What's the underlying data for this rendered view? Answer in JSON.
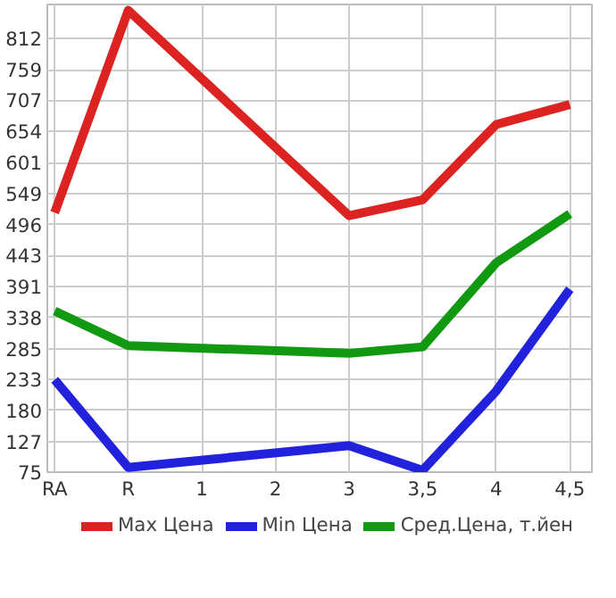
{
  "chart_data": {
    "type": "line",
    "categories": [
      "RA",
      "R",
      "1",
      "2",
      "3",
      "3,5",
      "4",
      "4,5"
    ],
    "series": [
      {
        "name": "Max Цена",
        "color": "#dd2222",
        "values": [
          516,
          860,
          null,
          null,
          511,
          538,
          666,
          700
        ]
      },
      {
        "name": "Min Цена",
        "color": "#2222dd",
        "values": [
          232,
          83,
          null,
          null,
          120,
          78,
          213,
          386
        ]
      },
      {
        "name": "Сред.Цена, т.йен",
        "color": "#119911",
        "values": [
          349,
          290,
          null,
          null,
          277,
          288,
          431,
          514
        ]
      }
    ],
    "ylim": [
      75,
      870
    ],
    "yticks": [
      75,
      127,
      180,
      233,
      285,
      338,
      391,
      443,
      496,
      549,
      601,
      654,
      707,
      759,
      812
    ],
    "grid": true,
    "legend": "bottom",
    "marker": "none",
    "line_style": "solid"
  }
}
